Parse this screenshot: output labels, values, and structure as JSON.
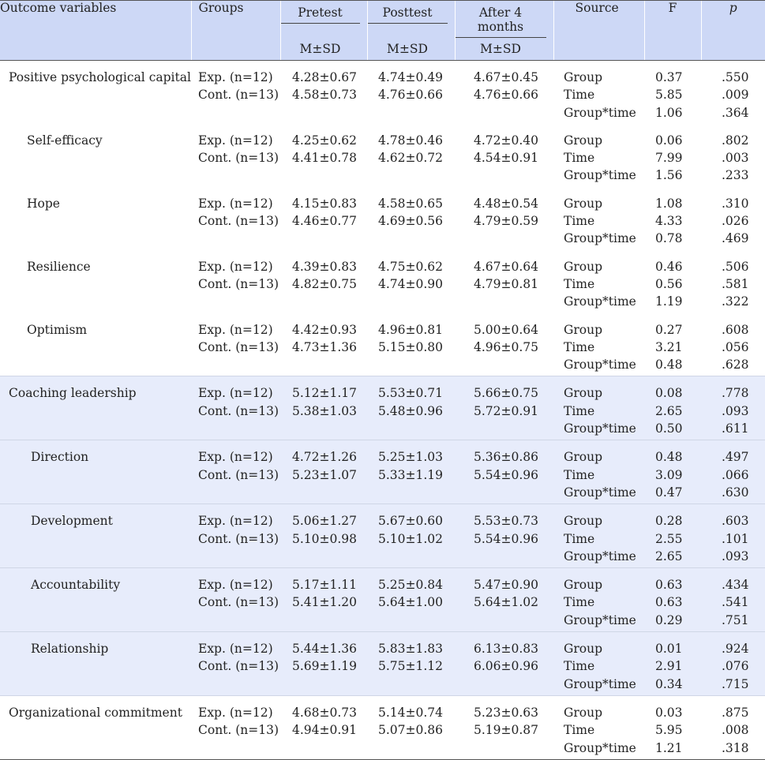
{
  "header": {
    "outcome": "Outcome variables",
    "groups": "Groups",
    "pretest": "Pretest",
    "posttest": "Posttest",
    "after": "After 4 months",
    "msd": "M±SD",
    "source": "Source",
    "f": "F",
    "p": "p"
  },
  "rows": [
    {
      "label": "Positive psychological capital",
      "indent": 0,
      "shade": false,
      "groups": [
        "Exp. (n=12)",
        "Cont. (n=13)"
      ],
      "pre": [
        "4.28±0.67",
        "4.58±0.73"
      ],
      "post": [
        "4.74±0.49",
        "4.76±0.66"
      ],
      "after": [
        "4.67±0.45",
        "4.76±0.66"
      ],
      "source": [
        "Group",
        "Time",
        "Group*time"
      ],
      "f": [
        "0.37",
        "5.85",
        "1.06"
      ],
      "p": [
        ".550",
        ".009",
        ".364"
      ]
    },
    {
      "label": "Self-efficacy",
      "indent": 1,
      "shade": false,
      "groups": [
        "Exp. (n=12)",
        "Cont. (n=13)"
      ],
      "pre": [
        "4.25±0.62",
        "4.41±0.78"
      ],
      "post": [
        "4.78±0.46",
        "4.62±0.72"
      ],
      "after": [
        "4.72±0.40",
        "4.54±0.91"
      ],
      "source": [
        "Group",
        "Time",
        "Group*time"
      ],
      "f": [
        "0.06",
        "7.99",
        "1.56"
      ],
      "p": [
        ".802",
        ".003",
        ".233"
      ]
    },
    {
      "label": "Hope",
      "indent": 1,
      "shade": false,
      "groups": [
        "Exp. (n=12)",
        "Cont. (n=13)"
      ],
      "pre": [
        "4.15±0.83",
        "4.46±0.77"
      ],
      "post": [
        "4.58±0.65",
        "4.69±0.56"
      ],
      "after": [
        "4.48±0.54",
        "4.79±0.59"
      ],
      "source": [
        "Group",
        "Time",
        "Group*time"
      ],
      "f": [
        "1.08",
        "4.33",
        "0.78"
      ],
      "p": [
        ".310",
        ".026",
        ".469"
      ]
    },
    {
      "label": "Resilience",
      "indent": 1,
      "shade": false,
      "groups": [
        "Exp. (n=12)",
        "Cont. (n=13)"
      ],
      "pre": [
        "4.39±0.83",
        "4.82±0.75"
      ],
      "post": [
        "4.75±0.62",
        "4.74±0.90"
      ],
      "after": [
        "4.67±0.64",
        "4.79±0.81"
      ],
      "source": [
        "Group",
        "Time",
        "Group*time"
      ],
      "f": [
        "0.46",
        "0.56",
        "1.19"
      ],
      "p": [
        ".506",
        ".581",
        ".322"
      ]
    },
    {
      "label": "Optimism",
      "indent": 1,
      "shade": false,
      "groups": [
        "Exp. (n=12)",
        "Cont. (n=13)"
      ],
      "pre": [
        "4.42±0.93",
        "4.73±1.36"
      ],
      "post": [
        "4.96±0.81",
        "5.15±0.80"
      ],
      "after": [
        "5.00±0.64",
        "4.96±0.75"
      ],
      "source": [
        "Group",
        "Time",
        "Group*time"
      ],
      "f": [
        "0.27",
        "3.21",
        "0.48"
      ],
      "p": [
        ".608",
        ".056",
        ".628"
      ]
    },
    {
      "label": "Coaching leadership",
      "indent": 0,
      "shade": true,
      "groups": [
        "Exp. (n=12)",
        "Cont. (n=13)"
      ],
      "pre": [
        "5.12±1.17",
        "5.38±1.03"
      ],
      "post": [
        "5.53±0.71",
        "5.48±0.96"
      ],
      "after": [
        "5.66±0.75",
        "5.72±0.91"
      ],
      "source": [
        "Group",
        "Time",
        "Group*time"
      ],
      "f": [
        "0.08",
        "2.65",
        "0.50"
      ],
      "p": [
        ".778",
        ".093",
        ".611"
      ]
    },
    {
      "label": "Direction",
      "indent": 2,
      "shade": true,
      "groups": [
        "Exp. (n=12)",
        "Cont. (n=13)"
      ],
      "pre": [
        "4.72±1.26",
        "5.23±1.07"
      ],
      "post": [
        "5.25±1.03",
        "5.33±1.19"
      ],
      "after": [
        "5.36±0.86",
        "5.54±0.96"
      ],
      "source": [
        "Group",
        "Time",
        "Group*time"
      ],
      "f": [
        "0.48",
        "3.09",
        "0.47"
      ],
      "p": [
        ".497",
        ".066",
        ".630"
      ]
    },
    {
      "label": "Development",
      "indent": 2,
      "shade": true,
      "groups": [
        "Exp. (n=12)",
        "Cont. (n=13)"
      ],
      "pre": [
        "5.06±1.27",
        "5.10±0.98"
      ],
      "post": [
        "5.67±0.60",
        "5.10±1.02"
      ],
      "after": [
        "5.53±0.73",
        "5.54±0.96"
      ],
      "source": [
        "Group",
        "Time",
        "Group*time"
      ],
      "f": [
        "0.28",
        "2.55",
        "2.65"
      ],
      "p": [
        ".603",
        ".101",
        ".093"
      ]
    },
    {
      "label": "Accountability",
      "indent": 2,
      "shade": true,
      "groups": [
        "Exp. (n=12)",
        "Cont. (n=13)"
      ],
      "pre": [
        "5.17±1.11",
        "5.41±1.20"
      ],
      "post": [
        "5.25±0.84",
        "5.64±1.00"
      ],
      "after": [
        "5.47±0.90",
        "5.64±1.02"
      ],
      "source": [
        "Group",
        "Time",
        "Group*time"
      ],
      "f": [
        "0.63",
        "0.63",
        "0.29"
      ],
      "p": [
        ".434",
        ".541",
        ".751"
      ]
    },
    {
      "label": "Relationship",
      "indent": 2,
      "shade": true,
      "groups": [
        "Exp. (n=12)",
        "Cont. (n=13)"
      ],
      "pre": [
        "5.44±1.36",
        "5.69±1.19"
      ],
      "post": [
        "5.83±1.83",
        "5.75±1.12"
      ],
      "after": [
        "6.13±0.83",
        "6.06±0.96"
      ],
      "source": [
        "Group",
        "Time",
        "Group*time"
      ],
      "f": [
        "0.01",
        "2.91",
        "0.34"
      ],
      "p": [
        ".924",
        ".076",
        ".715"
      ]
    },
    {
      "label": "Organizational commitment",
      "indent": 0,
      "shade": false,
      "groups": [
        "Exp. (n=12)",
        "Cont. (n=13)"
      ],
      "pre": [
        "4.68±0.73",
        "4.94±0.91"
      ],
      "post": [
        "5.14±0.74",
        "5.07±0.86"
      ],
      "after": [
        "5.23±0.63",
        "5.19±0.87"
      ],
      "source": [
        "Group",
        "Time",
        "Group*time"
      ],
      "f": [
        "0.03",
        "5.95",
        "1.21"
      ],
      "p": [
        ".875",
        ".008",
        ".318"
      ]
    }
  ]
}
